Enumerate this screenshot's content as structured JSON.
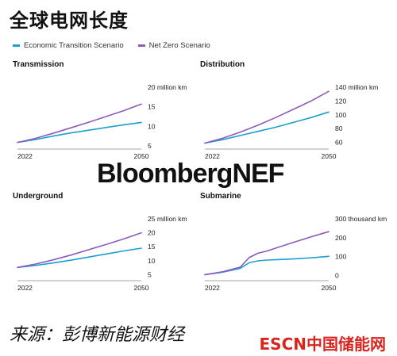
{
  "title": "全球电网长度",
  "legend": [
    {
      "label": "Economic Transition Scenario",
      "color": "#1b9fd0"
    },
    {
      "label": "Net Zero Scenario",
      "color": "#8e5bbd"
    }
  ],
  "brand": "BloombergNEF",
  "source": "来源：彭博新能源财经",
  "logo": "ESCN中国储能网",
  "chart_data": [
    {
      "type": "line",
      "title": "Transmission",
      "unit_label": "20 million km",
      "x": [
        2022,
        2026,
        2030,
        2034,
        2038,
        2042,
        2046,
        2050
      ],
      "xticks": [
        "2022",
        "2050"
      ],
      "ylim": [
        5,
        20
      ],
      "yticks": [
        5,
        10,
        15,
        20
      ],
      "ytick_labels": [
        "5",
        "10",
        "15",
        "20 million km"
      ],
      "series": [
        {
          "name": "Economic Transition Scenario",
          "color": "#1b9fd0",
          "values": [
            5.9,
            6.6,
            7.5,
            8.3,
            9.0,
            9.7,
            10.4,
            11.0
          ]
        },
        {
          "name": "Net Zero Scenario",
          "color": "#8e5bbd",
          "values": [
            5.9,
            6.9,
            8.2,
            9.6,
            11.0,
            12.5,
            14.0,
            15.7
          ]
        }
      ]
    },
    {
      "type": "line",
      "title": "Distribution",
      "unit_label": "140 million km",
      "x": [
        2022,
        2026,
        2030,
        2034,
        2038,
        2042,
        2046,
        2050
      ],
      "xticks": [
        "2022",
        "2050"
      ],
      "ylim": [
        55,
        140
      ],
      "yticks": [
        60,
        80,
        100,
        120,
        140
      ],
      "ytick_labels": [
        "60",
        "80",
        "100",
        "120",
        "140 million km"
      ],
      "series": [
        {
          "name": "Economic Transition Scenario",
          "color": "#1b9fd0",
          "values": [
            59,
            64,
            70,
            76,
            82,
            89,
            96,
            104
          ]
        },
        {
          "name": "Net Zero Scenario",
          "color": "#8e5bbd",
          "values": [
            59,
            66,
            75,
            85,
            96,
            108,
            120,
            134
          ]
        }
      ]
    },
    {
      "type": "line",
      "title": "Underground",
      "unit_label": "25 million km",
      "x": [
        2022,
        2026,
        2030,
        2034,
        2038,
        2042,
        2046,
        2050
      ],
      "xticks": [
        "2022",
        "2050"
      ],
      "ylim": [
        4,
        25
      ],
      "yticks": [
        5,
        10,
        15,
        20,
        25
      ],
      "ytick_labels": [
        "5",
        "10",
        "15",
        "20",
        "25 million km"
      ],
      "series": [
        {
          "name": "Economic Transition Scenario",
          "color": "#1b9fd0",
          "values": [
            7.6,
            8.3,
            9.2,
            10.2,
            11.3,
            12.4,
            13.5,
            14.5
          ]
        },
        {
          "name": "Net Zero Scenario",
          "color": "#8e5bbd",
          "values": [
            7.6,
            8.8,
            10.3,
            12.0,
            13.9,
            15.8,
            17.8,
            20.0
          ]
        }
      ]
    },
    {
      "type": "line",
      "title": "Submarine",
      "unit_label": "300 thousand km",
      "x": [
        2022,
        2026,
        2030,
        2032,
        2034,
        2036,
        2038,
        2042,
        2046,
        2050
      ],
      "xticks": [
        "2022",
        "2050"
      ],
      "ylim": [
        -10,
        300
      ],
      "yticks": [
        0,
        100,
        200,
        300
      ],
      "ytick_labels": [
        "0",
        "100",
        "200",
        "300 thousand km"
      ],
      "series": [
        {
          "name": "Economic Transition Scenario",
          "color": "#1b9fd0",
          "values": [
            5,
            18,
            38,
            68,
            78,
            82,
            84,
            88,
            94,
            102
          ]
        },
        {
          "name": "Net Zero Scenario",
          "color": "#8e5bbd",
          "values": [
            5,
            20,
            45,
            95,
            118,
            130,
            145,
            175,
            205,
            232
          ]
        }
      ]
    }
  ]
}
